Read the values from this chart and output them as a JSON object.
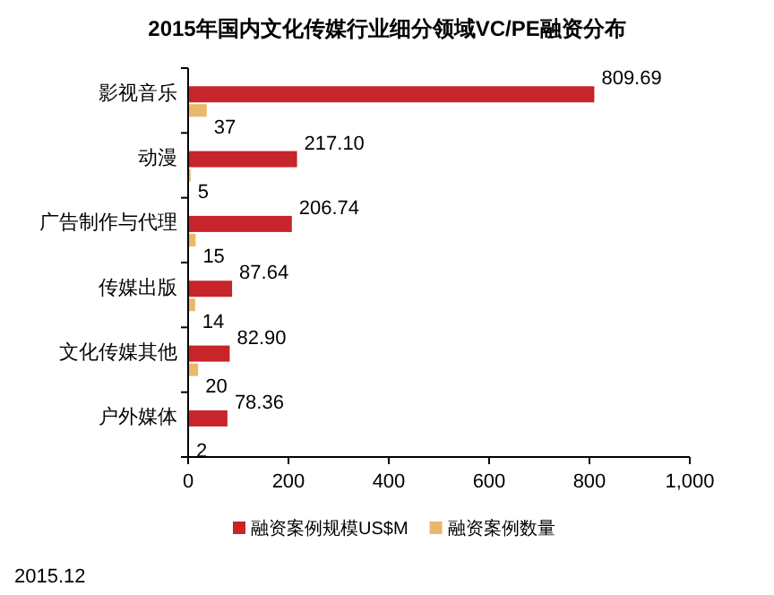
{
  "chart_data": {
    "type": "bar",
    "orientation": "horizontal",
    "title": "2015年国内文化传媒行业细分领域VC/PE融资分布",
    "categories": [
      "影视音乐",
      "动漫",
      "广告制作与代理",
      "传媒出版",
      "文化传媒其他",
      "户外媒体"
    ],
    "series": [
      {
        "name": "融资案例规模US$M",
        "color": "#c8242b",
        "values": [
          809.69,
          217.1,
          206.74,
          87.64,
          82.9,
          78.36
        ],
        "value_labels": [
          "809.69",
          "217.10",
          "206.74",
          "87.64",
          "82.90",
          "78.36"
        ]
      },
      {
        "name": "融资案例数量",
        "color": "#e8b96a",
        "values": [
          37,
          5,
          15,
          14,
          20,
          2
        ],
        "value_labels": [
          "37",
          "5",
          "15",
          "14",
          "20",
          "2"
        ]
      }
    ],
    "xlim": [
      0,
      1000
    ],
    "xticks": [
      0,
      200,
      400,
      600,
      800,
      {
        "value": 1000,
        "label": "1,000"
      }
    ],
    "legend": "bottom",
    "annotations": [
      "2015.12"
    ]
  }
}
